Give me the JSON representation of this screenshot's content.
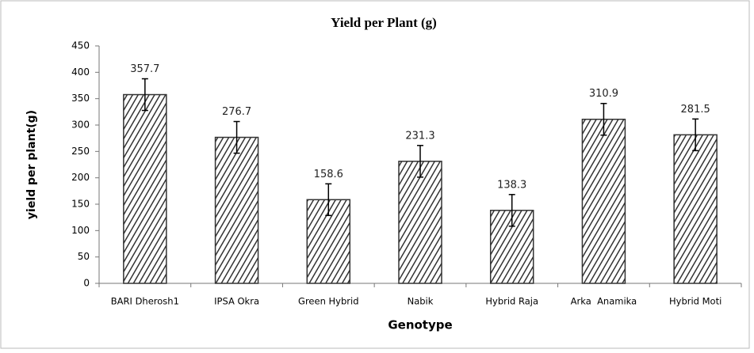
{
  "chart_data": {
    "type": "bar",
    "title": "Yield per Plant (g)",
    "x_label": "Genotype",
    "y_label": "yield per plant(g)",
    "categories": [
      "BARI Dherosh1",
      "IPSA Okra",
      "Green Hybrid",
      "Nabik",
      "Hybrid Raja",
      "Arka  Anamika",
      "Hybrid Moti"
    ],
    "values": [
      357.7,
      276.7,
      158.6,
      231.3,
      138.3,
      310.9,
      281.5
    ],
    "errors": [
      30,
      30,
      30,
      30,
      30,
      30,
      30
    ],
    "color": "#333333",
    "ylim": [
      0,
      450
    ],
    "yticks": [
      0,
      50,
      100,
      150,
      200,
      250,
      300,
      350,
      400,
      450
    ],
    "grid": false
  }
}
